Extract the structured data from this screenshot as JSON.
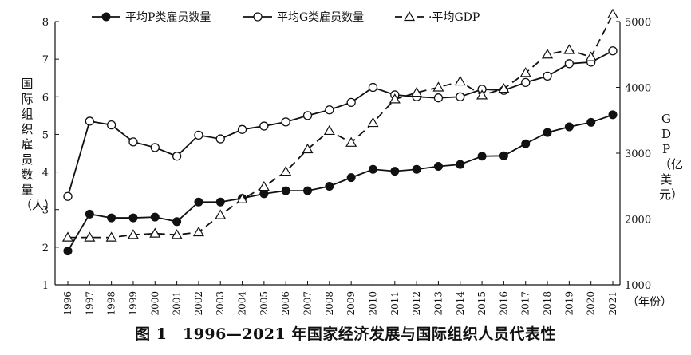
{
  "chart_data": {
    "type": "line",
    "caption": "图 1　1996—2021 年国家经济发展与国际组织人员代表性",
    "ylabel_left": "国际组织雇员数量（人）",
    "ylabel_right": "GDP（亿美元）",
    "xunit": "（年份）",
    "x": [
      "1996",
      "1997",
      "1998",
      "1999",
      "2000",
      "2001",
      "2002",
      "2003",
      "2004",
      "2005",
      "2006",
      "2007",
      "2008",
      "2009",
      "2010",
      "2011",
      "2012",
      "2013",
      "2014",
      "2015",
      "2016",
      "2017",
      "2018",
      "2019",
      "2020",
      "2021"
    ],
    "ylim_left": [
      1,
      8
    ],
    "yticks_left": [
      "1",
      "2",
      "3",
      "4",
      "5",
      "6",
      "7",
      "8"
    ],
    "ylim_right": [
      1000,
      5000
    ],
    "yticks_right": [
      "1000",
      "2000",
      "3000",
      "4000",
      "5000"
    ],
    "legend_position": "top-left",
    "grid": false,
    "series": [
      {
        "name": "平均P类雇员数量",
        "axis": "left",
        "marker": "filled-circle",
        "line": "solid",
        "values": [
          1.9,
          2.88,
          2.78,
          2.78,
          2.8,
          2.68,
          3.2,
          3.2,
          3.3,
          3.42,
          3.5,
          3.5,
          3.62,
          3.85,
          4.07,
          4.02,
          4.07,
          4.15,
          4.2,
          4.42,
          4.43,
          4.75,
          5.05,
          5.2,
          5.32,
          5.52
        ]
      },
      {
        "name": "平均G类雇员数量",
        "axis": "left",
        "marker": "open-circle",
        "line": "solid",
        "values": [
          3.35,
          5.35,
          5.25,
          4.8,
          4.65,
          4.42,
          4.98,
          4.88,
          5.13,
          5.22,
          5.33,
          5.5,
          5.65,
          5.85,
          6.25,
          6.05,
          6.0,
          5.97,
          6.0,
          6.2,
          6.17,
          6.38,
          6.55,
          6.88,
          6.92,
          7.22
        ]
      },
      {
        "name": "平均GDP",
        "axis": "right",
        "marker": "open-triangle",
        "line": "dashed",
        "values": [
          1720,
          1720,
          1720,
          1760,
          1780,
          1760,
          1800,
          2060,
          2300,
          2490,
          2720,
          3060,
          3340,
          3160,
          3460,
          3820,
          3920,
          4000,
          4090,
          3880,
          3980,
          4220,
          4500,
          4570,
          4460,
          5110
        ]
      }
    ]
  }
}
